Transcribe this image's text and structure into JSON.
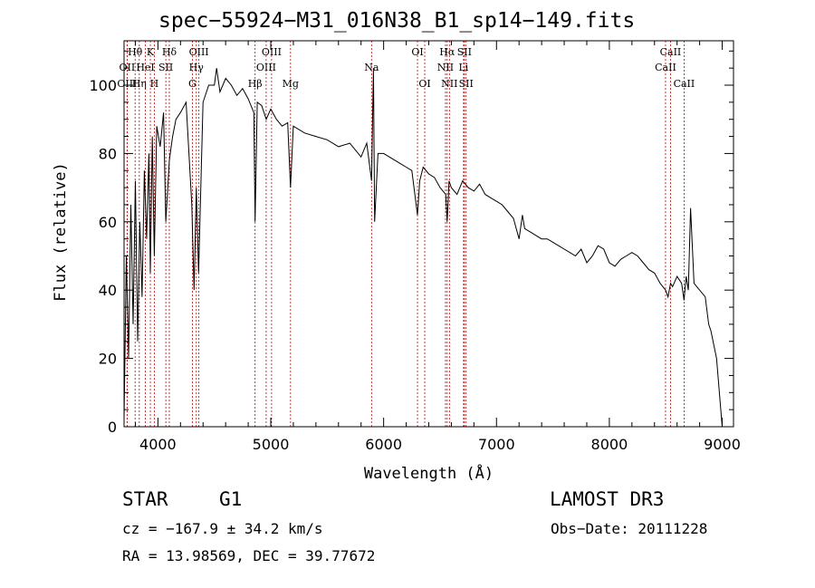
{
  "chart_data": {
    "type": "line",
    "title": "spec−55924−M31_016N38_B1_sp14−149.fits",
    "xlabel": "Wavelength (Å)",
    "ylabel": "Flux (relative)",
    "xlim": [
      3700,
      9100
    ],
    "ylim": [
      0,
      113
    ],
    "xticks": [
      4000,
      5000,
      6000,
      7000,
      8000,
      9000
    ],
    "xtick_labels": [
      "4000",
      "5000",
      "6000",
      "7000",
      "8000",
      "9000"
    ],
    "yticks": [
      0,
      20,
      40,
      60,
      80,
      100
    ],
    "ytick_labels": [
      "0",
      "20",
      "40",
      "60",
      "80",
      "100"
    ],
    "grid": false,
    "series": [
      {
        "name": "spectrum",
        "x": [
          3700,
          3720,
          3740,
          3760,
          3780,
          3800,
          3820,
          3840,
          3860,
          3880,
          3900,
          3920,
          3933,
          3950,
          3968,
          3990,
          4020,
          4050,
          4070,
          4101,
          4130,
          4160,
          4200,
          4250,
          4300,
          4320,
          4340,
          4360,
          4400,
          4450,
          4500,
          4520,
          4550,
          4600,
          4650,
          4700,
          4750,
          4800,
          4850,
          4861,
          4880,
          4920,
          4960,
          5000,
          5050,
          5100,
          5150,
          5175,
          5200,
          5300,
          5400,
          5500,
          5600,
          5700,
          5800,
          5850,
          5893,
          5910,
          5920,
          5950,
          6000,
          6050,
          6100,
          6150,
          6200,
          6250,
          6300,
          6320,
          6350,
          6400,
          6450,
          6500,
          6550,
          6563,
          6580,
          6600,
          6650,
          6700,
          6750,
          6800,
          6850,
          6900,
          6950,
          7000,
          7050,
          7100,
          7150,
          7200,
          7230,
          7250,
          7300,
          7350,
          7400,
          7450,
          7500,
          7550,
          7600,
          7650,
          7700,
          7750,
          7800,
          7850,
          7900,
          7950,
          8000,
          8050,
          8100,
          8150,
          8200,
          8250,
          8300,
          8350,
          8400,
          8450,
          8498,
          8520,
          8542,
          8560,
          8600,
          8640,
          8662,
          8680,
          8700,
          8720,
          8750,
          8800,
          8850,
          8880,
          8900,
          8950,
          9000
        ],
        "values": [
          2,
          50,
          20,
          65,
          30,
          72,
          25,
          60,
          38,
          75,
          55,
          80,
          45,
          85,
          50,
          88,
          82,
          92,
          60,
          78,
          85,
          90,
          92,
          95,
          65,
          40,
          70,
          45,
          95,
          100,
          100,
          105,
          98,
          102,
          100,
          97,
          99,
          96,
          92,
          60,
          95,
          94,
          90,
          93,
          90,
          88,
          89,
          70,
          88,
          86,
          85,
          84,
          82,
          83,
          79,
          83,
          72,
          105,
          60,
          80,
          80,
          79,
          78,
          77,
          76,
          75,
          62,
          72,
          76,
          74,
          73,
          70,
          68,
          60,
          72,
          70,
          68,
          72,
          70,
          69,
          71,
          68,
          67,
          66,
          65,
          63,
          61,
          55,
          62,
          58,
          57,
          56,
          55,
          55,
          54,
          53,
          52,
          51,
          50,
          52,
          48,
          50,
          53,
          52,
          48,
          47,
          49,
          50,
          51,
          50,
          48,
          46,
          45,
          42,
          40,
          38,
          42,
          41,
          44,
          42,
          37,
          44,
          40,
          64,
          42,
          40,
          38,
          30,
          28,
          20,
          0
        ],
        "color": "#000000"
      }
    ],
    "spectral_lines": [
      {
        "label": "Hθ",
        "x": 3798,
        "row": 0
      },
      {
        "label": "OII",
        "x": 3727,
        "row": 1
      },
      {
        "label": "OIII",
        "x": 3727,
        "row": 2
      },
      {
        "label": "K",
        "x": 3933,
        "row": 0
      },
      {
        "label": "HeI",
        "x": 3889,
        "row": 1
      },
      {
        "label": "Hη",
        "x": 3835,
        "row": 2
      },
      {
        "label": "Hδ",
        "x": 4101,
        "row": 0
      },
      {
        "label": "SII",
        "x": 4070,
        "row": 1
      },
      {
        "label": "H",
        "x": 3968,
        "row": 2
      },
      {
        "label": "OIII",
        "x": 4363,
        "row": 0
      },
      {
        "label": "Hγ",
        "x": 4340,
        "row": 1
      },
      {
        "label": "G",
        "x": 4305,
        "row": 2
      },
      {
        "label": "OIII",
        "x": 5007,
        "row": 0
      },
      {
        "label": "OIII",
        "x": 4959,
        "row": 1
      },
      {
        "label": "Hβ",
        "x": 4861,
        "row": 2
      },
      {
        "label": "Mg",
        "x": 5175,
        "row": 2
      },
      {
        "label": "Na",
        "x": 5893,
        "row": 1
      },
      {
        "label": "OI",
        "x": 6300,
        "row": 0
      },
      {
        "label": "OI",
        "x": 6364,
        "row": 2
      },
      {
        "label": "Hα",
        "x": 6563,
        "row": 0
      },
      {
        "label": "NII",
        "x": 6548,
        "row": 1
      },
      {
        "label": "NII",
        "x": 6583,
        "row": 2
      },
      {
        "label": "SII",
        "x": 6716,
        "row": 0
      },
      {
        "label": "Li",
        "x": 6708,
        "row": 1
      },
      {
        "label": "SII",
        "x": 6731,
        "row": 2
      },
      {
        "label": "CaII",
        "x": 8542,
        "row": 0
      },
      {
        "label": "CaII",
        "x": 8498,
        "row": 1
      },
      {
        "label": "CaII",
        "x": 8662,
        "row": 2
      }
    ]
  },
  "info": {
    "object_class": "STAR",
    "subclass": "G1",
    "survey": "LAMOST DR3",
    "cz": "cz = −167.9 ± 34.2 km/s",
    "obs_date": "Obs−Date: 20111228",
    "coords": "RA =  13.98569, DEC =  39.77672"
  },
  "colors": {
    "line": "#000000",
    "marker": "#cc0000",
    "background": "#ffffff"
  }
}
